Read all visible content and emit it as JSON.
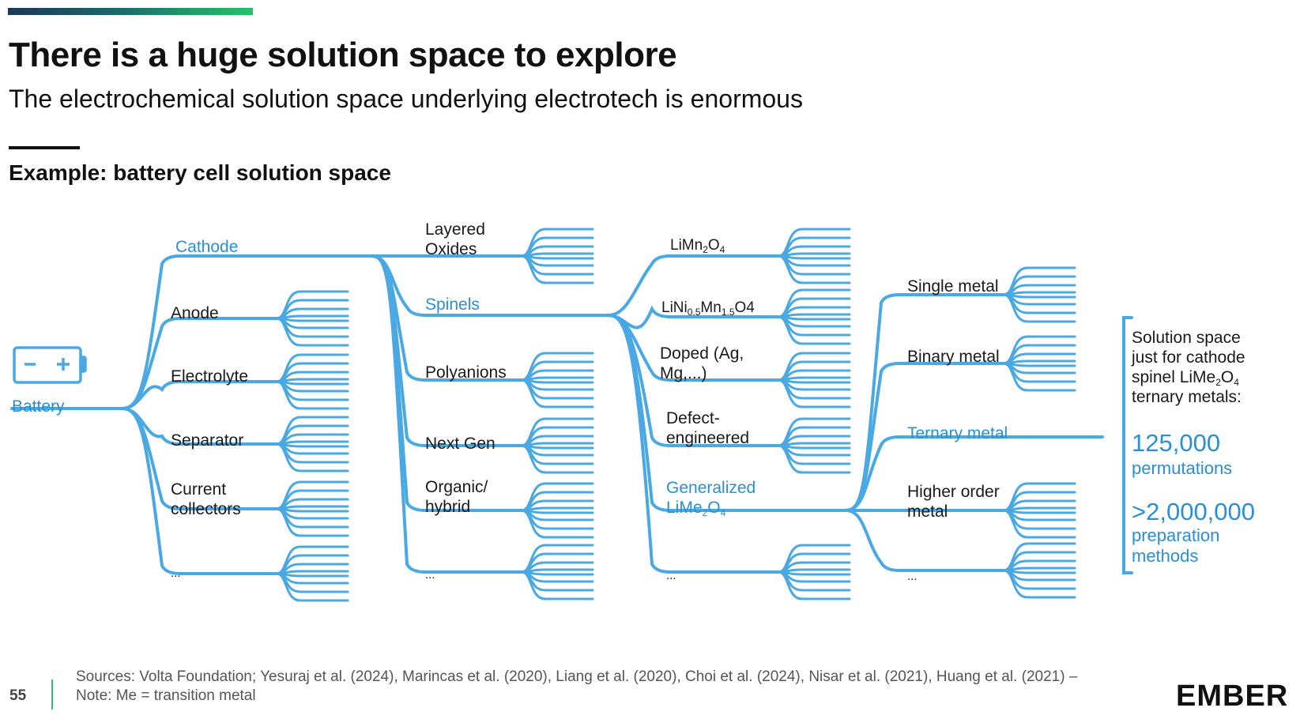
{
  "header": {
    "title": "There is a huge solution space to explore",
    "subtitle": "The electrochemical solution space underlying electrotech is enormous",
    "section": "Example: battery cell solution space"
  },
  "tree": {
    "root": "Battery",
    "level1": [
      "Cathode",
      "Anode",
      "Electrolyte",
      "Separator",
      "Current collectors",
      "..."
    ],
    "level2": [
      "Layered Oxides",
      "Spinels",
      "Polyanions",
      "Next Gen",
      "Organic/ hybrid",
      "..."
    ],
    "level3": [
      "LiMn2O4",
      "LiNi0.5Mn1.5O4",
      "Doped (Ag, Mg,...)",
      "Defect-engineered",
      "Generalized LiMe2O4",
      "..."
    ],
    "level4": [
      "Single metal",
      "Binary metal",
      "Ternary metal",
      "Higher order metal",
      "..."
    ],
    "highlight_color": "#2b8fd4",
    "line_color": "#4aa8e3"
  },
  "callout": {
    "text": "Solution space just for cathode spinel LiMe2O4 ternary metals:",
    "stat1_value": "125,000",
    "stat1_label": "permutations",
    "stat2_value": ">2,000,000",
    "stat2_label": "preparation methods"
  },
  "footer": {
    "page": "55",
    "sources": "Sources: Volta Foundation; Yesuraj et al. (2024), Marincas et al. (2020), Liang et al. (2020), Choi et al. (2024), Nisar et al. (2021), Huang et al. (2021) – Note: Me = transition metal",
    "logo": "EMBER"
  }
}
